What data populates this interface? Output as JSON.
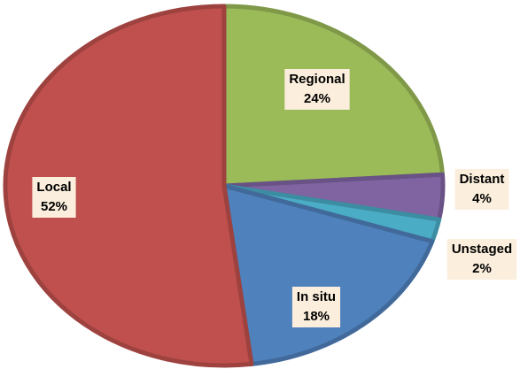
{
  "chart_data": {
    "type": "pie",
    "categories": [
      "Regional",
      "Distant",
      "Unstaged",
      "In situ",
      "Local"
    ],
    "values": [
      24,
      4,
      2,
      18,
      52
    ],
    "value_labels": [
      "24%",
      "4%",
      "2%",
      "18%",
      "52%"
    ],
    "colors": [
      "#9bbb59",
      "#8064a2",
      "#4bacc6",
      "#4f81bd",
      "#c0504d"
    ]
  }
}
